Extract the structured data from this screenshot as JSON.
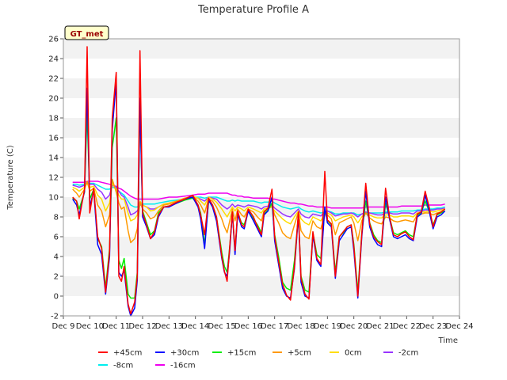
{
  "chart_data": {
    "type": "line",
    "title": "Temperature Profile A",
    "xlabel": "Time",
    "ylabel": "Temperature (C)",
    "ylim": [
      -2,
      26
    ],
    "yticks": [
      "-2",
      "0",
      "2",
      "4",
      "6",
      "8",
      "10",
      "12",
      "14",
      "16",
      "18",
      "20",
      "22",
      "24",
      "26"
    ],
    "xlim": [
      9,
      24
    ],
    "xticks": [
      "Dec 9",
      "Dec 10",
      "Dec 11",
      "Dec 12",
      "Dec 13",
      "Dec 14",
      "Dec 15",
      "Dec 16",
      "Dec 17",
      "Dec 18",
      "Dec 19",
      "Dec 20",
      "Dec 21",
      "Dec 22",
      "Dec 23",
      "Dec 24"
    ],
    "grid": "horizontal bands",
    "badge": "GT_met",
    "legend_position": "bottom",
    "x": [
      9.35,
      9.5,
      9.6,
      9.8,
      9.9,
      10.0,
      10.15,
      10.3,
      10.45,
      10.6,
      10.75,
      10.85,
      11.0,
      11.1,
      11.2,
      11.3,
      11.45,
      11.55,
      11.7,
      11.8,
      11.9,
      12.0,
      12.15,
      12.3,
      12.45,
      12.6,
      12.8,
      13.0,
      13.3,
      13.6,
      13.9,
      14.1,
      14.2,
      14.35,
      14.5,
      14.65,
      14.8,
      15.0,
      15.1,
      15.2,
      15.3,
      15.4,
      15.5,
      15.6,
      15.75,
      15.85,
      16.0,
      16.2,
      16.35,
      16.5,
      16.6,
      16.75,
      16.9,
      17.0,
      17.15,
      17.3,
      17.45,
      17.6,
      17.75,
      17.9,
      18.0,
      18.15,
      18.3,
      18.45,
      18.6,
      18.75,
      18.9,
      19.0,
      19.15,
      19.3,
      19.45,
      19.6,
      19.75,
      19.9,
      20.0,
      20.15,
      20.3,
      20.45,
      20.6,
      20.75,
      20.9,
      21.05,
      21.2,
      21.35,
      21.5,
      21.65,
      21.8,
      21.95,
      22.1,
      22.25,
      22.4,
      22.55,
      22.7,
      22.85,
      23.0,
      23.15,
      23.3,
      23.45
    ],
    "series": [
      {
        "name": "+45cm",
        "color": "#ff0000",
        "values": [
          10.0,
          9.6,
          7.8,
          10.8,
          25.2,
          8.4,
          10.9,
          6.0,
          4.8,
          0.4,
          4.5,
          18.0,
          22.6,
          2.0,
          1.5,
          3.0,
          -0.8,
          -1.8,
          -0.6,
          2.0,
          24.8,
          8.4,
          7.2,
          5.8,
          6.5,
          8.2,
          9.0,
          9.1,
          9.5,
          9.8,
          10.2,
          9.2,
          8.2,
          6.2,
          9.9,
          9.2,
          8.0,
          4.0,
          2.5,
          1.5,
          5.0,
          8.5,
          4.6,
          8.6,
          7.2,
          7.0,
          8.8,
          8.0,
          7.0,
          6.2,
          8.5,
          8.9,
          10.8,
          6.0,
          3.5,
          1.2,
          0.1,
          -0.4,
          3.0,
          8.5,
          1.8,
          0.2,
          -0.3,
          6.5,
          3.8,
          3.2,
          12.6,
          7.7,
          7.3,
          2.0,
          6.0,
          6.5,
          7.0,
          7.2,
          5.0,
          0.0,
          6.3,
          11.4,
          7.3,
          6.0,
          5.5,
          5.2,
          10.9,
          8.0,
          6.2,
          6.0,
          6.3,
          6.5,
          6.0,
          5.7,
          8.3,
          8.5,
          10.6,
          9.0,
          7.0,
          8.3,
          8.5,
          8.8
        ]
      },
      {
        "name": "+30cm",
        "color": "#0000ff",
        "values": [
          9.8,
          9.2,
          8.2,
          10.6,
          21.0,
          9.0,
          10.7,
          5.2,
          4.2,
          0.2,
          4.0,
          16.8,
          21.8,
          2.4,
          2.0,
          2.6,
          -1.0,
          -2.0,
          -1.2,
          1.6,
          20.0,
          8.0,
          7.0,
          5.8,
          6.2,
          8.0,
          9.0,
          9.0,
          9.4,
          9.8,
          10.0,
          9.0,
          7.8,
          4.8,
          9.7,
          9.0,
          7.6,
          3.8,
          2.4,
          2.0,
          4.6,
          8.4,
          4.2,
          8.3,
          7.0,
          6.8,
          8.6,
          7.6,
          6.8,
          6.0,
          8.2,
          8.6,
          10.0,
          5.6,
          3.2,
          0.8,
          0.0,
          -0.2,
          2.8,
          8.2,
          1.4,
          0.0,
          -0.2,
          6.2,
          3.6,
          3.0,
          9.0,
          7.4,
          7.0,
          1.8,
          5.6,
          6.2,
          6.8,
          7.0,
          4.6,
          -0.2,
          6.0,
          10.6,
          7.0,
          5.8,
          5.2,
          5.0,
          10.0,
          7.8,
          6.0,
          5.8,
          6.0,
          6.2,
          5.8,
          5.6,
          8.0,
          8.3,
          10.2,
          8.6,
          6.8,
          8.0,
          8.2,
          8.6
        ]
      },
      {
        "name": "+15cm",
        "color": "#00ee00",
        "values": [
          9.9,
          9.6,
          8.8,
          10.5,
          18.6,
          9.8,
          10.8,
          5.8,
          5.0,
          0.8,
          4.8,
          15.0,
          18.0,
          3.6,
          2.8,
          3.8,
          0.2,
          -0.2,
          -0.2,
          2.4,
          19.2,
          8.6,
          7.4,
          6.2,
          6.6,
          8.4,
          9.0,
          9.1,
          9.4,
          9.7,
          9.9,
          9.2,
          8.4,
          5.2,
          9.6,
          9.2,
          8.0,
          4.4,
          3.0,
          2.4,
          5.0,
          8.5,
          4.6,
          8.4,
          7.4,
          7.2,
          8.6,
          7.8,
          7.2,
          6.4,
          8.3,
          8.7,
          9.4,
          6.2,
          4.0,
          1.4,
          0.8,
          0.6,
          3.6,
          8.2,
          2.0,
          0.6,
          0.4,
          6.4,
          4.2,
          3.8,
          8.8,
          7.6,
          7.2,
          2.4,
          6.0,
          6.4,
          7.0,
          7.2,
          5.2,
          0.4,
          6.4,
          9.6,
          7.4,
          6.2,
          5.6,
          5.4,
          9.4,
          8.0,
          6.4,
          6.2,
          6.4,
          6.6,
          6.2,
          6.0,
          8.2,
          8.4,
          9.6,
          8.6,
          7.2,
          8.2,
          8.4,
          8.6
        ]
      },
      {
        "name": "+5cm",
        "color": "#ff9900",
        "values": [
          10.8,
          10.4,
          10.0,
          10.8,
          11.6,
          10.6,
          10.9,
          9.2,
          8.6,
          7.0,
          8.2,
          11.8,
          10.5,
          9.4,
          8.8,
          9.0,
          6.6,
          5.4,
          5.8,
          6.8,
          9.5,
          8.8,
          8.4,
          7.8,
          8.0,
          8.6,
          9.2,
          9.3,
          9.6,
          9.9,
          10.1,
          9.6,
          9.2,
          8.4,
          9.8,
          9.6,
          9.0,
          7.8,
          7.0,
          6.4,
          7.6,
          8.8,
          7.6,
          8.8,
          8.2,
          8.0,
          8.8,
          8.5,
          8.0,
          7.6,
          8.6,
          8.8,
          9.1,
          8.2,
          7.4,
          6.4,
          6.0,
          5.8,
          7.2,
          8.5,
          6.6,
          6.0,
          5.8,
          7.6,
          7.0,
          6.8,
          8.2,
          8.2,
          7.8,
          6.2,
          7.4,
          7.6,
          7.8,
          8.0,
          7.4,
          5.6,
          7.6,
          8.4,
          7.9,
          7.6,
          7.4,
          7.3,
          8.0,
          7.9,
          7.6,
          7.5,
          7.6,
          7.7,
          7.6,
          7.5,
          8.2,
          8.3,
          8.4,
          8.4,
          8.2,
          8.4,
          8.5,
          8.6
        ]
      },
      {
        "name": "0cm",
        "color": "#ffdd00",
        "values": [
          11.0,
          10.8,
          10.6,
          11.0,
          11.4,
          11.0,
          11.1,
          10.2,
          9.8,
          8.6,
          9.4,
          11.4,
          10.8,
          10.2,
          9.8,
          9.8,
          8.4,
          7.6,
          7.8,
          8.2,
          9.6,
          9.2,
          9.0,
          8.6,
          8.7,
          9.0,
          9.3,
          9.4,
          9.6,
          9.9,
          10.1,
          9.9,
          9.6,
          9.2,
          10.0,
          9.8,
          9.5,
          8.8,
          8.4,
          8.0,
          8.5,
          9.0,
          8.6,
          9.0,
          8.8,
          8.6,
          9.0,
          8.8,
          8.6,
          8.4,
          8.8,
          8.9,
          9.0,
          8.6,
          8.2,
          7.8,
          7.5,
          7.3,
          8.0,
          8.6,
          7.8,
          7.4,
          7.2,
          8.0,
          7.8,
          7.6,
          8.3,
          8.4,
          8.2,
          7.6,
          7.8,
          8.0,
          8.1,
          8.2,
          8.0,
          7.4,
          8.0,
          8.4,
          8.2,
          8.0,
          7.9,
          7.9,
          8.2,
          8.2,
          8.0,
          8.0,
          8.1,
          8.1,
          8.1,
          8.0,
          8.4,
          8.5,
          8.5,
          8.6,
          8.5,
          8.6,
          8.7,
          8.8
        ]
      },
      {
        "name": "-2cm",
        "color": "#9933ff",
        "values": [
          11.2,
          11.1,
          11.0,
          11.2,
          11.5,
          11.3,
          11.3,
          10.8,
          10.5,
          9.8,
          10.2,
          11.2,
          11.0,
          10.6,
          10.2,
          10.0,
          9.0,
          8.2,
          8.4,
          8.6,
          9.2,
          9.2,
          9.0,
          8.8,
          8.8,
          9.0,
          9.3,
          9.4,
          9.6,
          9.8,
          10.0,
          9.9,
          9.8,
          9.6,
          10.0,
          9.9,
          9.8,
          9.2,
          9.0,
          8.8,
          9.0,
          9.3,
          9.0,
          9.2,
          9.1,
          9.0,
          9.2,
          9.1,
          9.0,
          8.8,
          9.0,
          9.1,
          9.2,
          8.9,
          8.6,
          8.3,
          8.1,
          8.0,
          8.4,
          8.8,
          8.3,
          8.0,
          7.9,
          8.3,
          8.2,
          8.1,
          8.5,
          8.6,
          8.4,
          8.1,
          8.2,
          8.3,
          8.3,
          8.4,
          8.3,
          8.0,
          8.3,
          8.5,
          8.4,
          8.3,
          8.2,
          8.2,
          8.4,
          8.4,
          8.3,
          8.3,
          8.4,
          8.4,
          8.4,
          8.3,
          8.6,
          8.6,
          8.7,
          8.7,
          8.7,
          8.8,
          8.8,
          8.9
        ]
      },
      {
        "name": "-8cm",
        "color": "#00eeee",
        "values": [
          11.3,
          11.3,
          11.2,
          11.3,
          11.5,
          11.4,
          11.4,
          11.2,
          11.0,
          10.8,
          10.8,
          11.0,
          10.9,
          10.6,
          10.4,
          10.2,
          9.6,
          9.2,
          9.0,
          9.0,
          9.2,
          9.3,
          9.3,
          9.3,
          9.3,
          9.4,
          9.5,
          9.6,
          9.7,
          9.8,
          10.0,
          10.0,
          10.0,
          9.9,
          10.0,
          10.0,
          10.0,
          9.8,
          9.7,
          9.6,
          9.6,
          9.7,
          9.6,
          9.7,
          9.6,
          9.6,
          9.6,
          9.6,
          9.5,
          9.4,
          9.5,
          9.5,
          9.6,
          9.4,
          9.2,
          9.0,
          8.9,
          8.8,
          8.9,
          9.0,
          8.8,
          8.6,
          8.5,
          8.6,
          8.5,
          8.4,
          8.5,
          8.6,
          8.5,
          8.3,
          8.3,
          8.4,
          8.4,
          8.4,
          8.4,
          8.2,
          8.3,
          8.4,
          8.4,
          8.4,
          8.4,
          8.4,
          8.5,
          8.5,
          8.5,
          8.5,
          8.6,
          8.6,
          8.6,
          8.6,
          8.7,
          8.7,
          8.8,
          8.8,
          8.8,
          8.9,
          8.9,
          9.0
        ]
      },
      {
        "name": "-16cm",
        "color": "#ee00ee",
        "values": [
          11.5,
          11.5,
          11.5,
          11.5,
          11.6,
          11.6,
          11.6,
          11.6,
          11.5,
          11.4,
          11.3,
          11.2,
          11.1,
          10.9,
          10.8,
          10.6,
          10.3,
          10.1,
          9.9,
          9.8,
          9.8,
          9.8,
          9.8,
          9.8,
          9.8,
          9.8,
          9.9,
          10.0,
          10.0,
          10.1,
          10.2,
          10.3,
          10.3,
          10.3,
          10.4,
          10.4,
          10.4,
          10.4,
          10.4,
          10.4,
          10.3,
          10.2,
          10.2,
          10.1,
          10.1,
          10.0,
          10.0,
          9.9,
          9.9,
          9.9,
          9.9,
          9.9,
          9.8,
          9.8,
          9.7,
          9.6,
          9.5,
          9.4,
          9.4,
          9.3,
          9.3,
          9.2,
          9.1,
          9.1,
          9.0,
          9.0,
          9.0,
          9.0,
          8.9,
          8.9,
          8.9,
          8.9,
          8.9,
          8.9,
          8.9,
          8.9,
          8.9,
          9.0,
          9.0,
          9.0,
          9.0,
          9.0,
          9.0,
          9.0,
          9.0,
          9.0,
          9.1,
          9.1,
          9.1,
          9.1,
          9.1,
          9.1,
          9.2,
          9.2,
          9.2,
          9.2,
          9.2,
          9.3
        ]
      }
    ]
  }
}
